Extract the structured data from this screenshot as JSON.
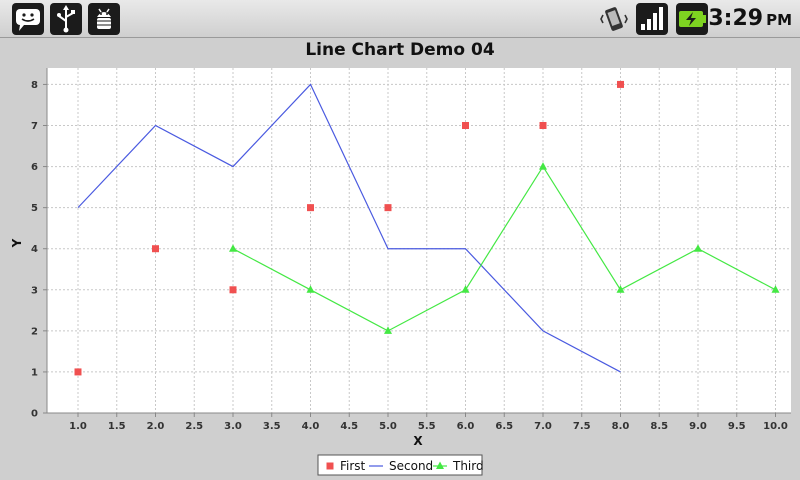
{
  "status_bar": {
    "left_icons": [
      "chat-notification-icon",
      "usb-icon",
      "android-debug-icon"
    ],
    "right_icons": [
      "vibrate-icon",
      "signal-icon",
      "battery-charging-icon"
    ],
    "time": "3:29",
    "ampm": "PM"
  },
  "chart_data": {
    "type": "line",
    "title": "Line Chart Demo 04",
    "xlabel": "X",
    "ylabel": "Y",
    "xlim": [
      0.6,
      10.2
    ],
    "ylim": [
      0,
      8.4
    ],
    "xticks": [
      "1.0",
      "1.5",
      "2.0",
      "2.5",
      "3.0",
      "3.5",
      "4.0",
      "4.5",
      "5.0",
      "5.5",
      "6.0",
      "6.5",
      "7.0",
      "7.5",
      "8.0",
      "8.5",
      "9.0",
      "9.5",
      "10.0"
    ],
    "yticks": [
      "0",
      "1",
      "2",
      "3",
      "4",
      "5",
      "6",
      "7",
      "8"
    ],
    "grid": true,
    "legend_position": "bottom",
    "series": [
      {
        "name": "First",
        "color": "#f05050",
        "style": "markers-square",
        "x": [
          1,
          2,
          3,
          4,
          5,
          6,
          7,
          8
        ],
        "y": [
          1,
          4,
          3,
          5,
          5,
          7,
          7,
          8
        ]
      },
      {
        "name": "Second",
        "color": "#4a5ae0",
        "style": "line",
        "x": [
          1,
          2,
          3,
          4,
          5,
          6,
          7,
          8
        ],
        "y": [
          5,
          7,
          6,
          8,
          4,
          4,
          2,
          1
        ]
      },
      {
        "name": "Third",
        "color": "#44e844",
        "style": "line-triangle",
        "x": [
          3,
          4,
          5,
          6,
          7,
          8,
          9,
          10
        ],
        "y": [
          4,
          3,
          2,
          3,
          6,
          3,
          4,
          3
        ]
      }
    ]
  }
}
